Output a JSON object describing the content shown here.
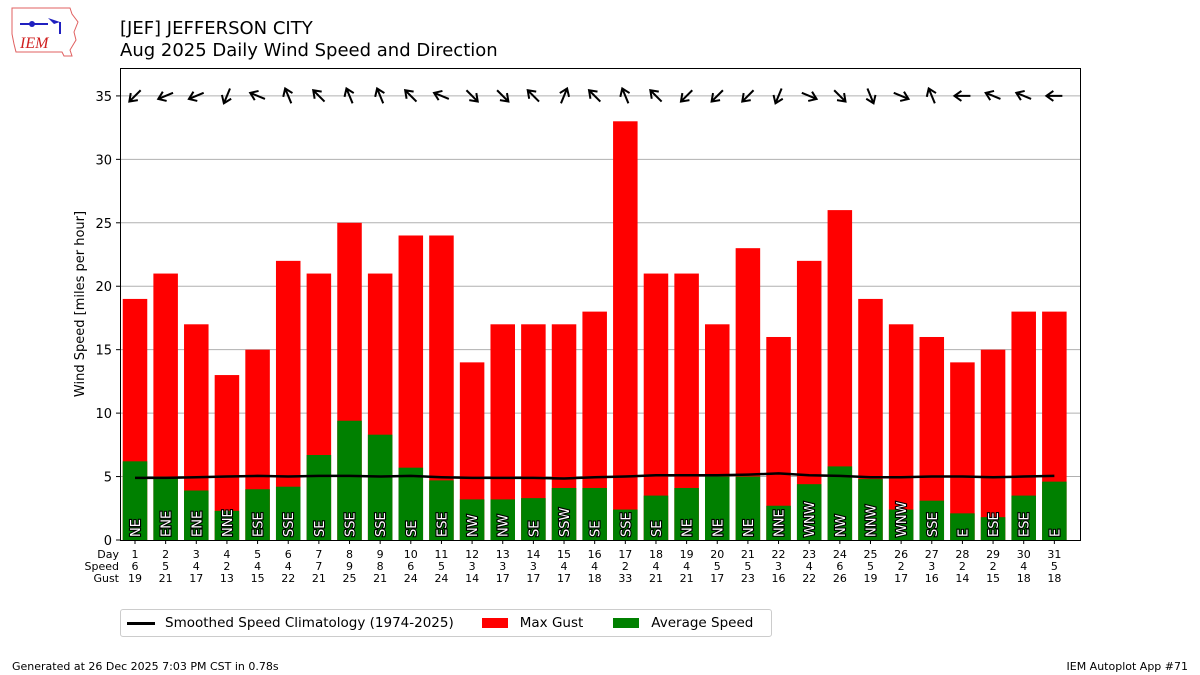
{
  "header": {
    "title_line1": "[JEF] JEFFERSON CITY",
    "title_line2": "Aug 2025 Daily Wind Speed and Direction",
    "logo_text": "IEM"
  },
  "footer": {
    "generated": "Generated at 26 Dec 2025 7:03 PM CST in 0.78s",
    "app": "IEM Autoplot App #71"
  },
  "legend": {
    "items": [
      {
        "label": "Smoothed Speed Climatology (1974-2025)",
        "color": "#000000",
        "kind": "line"
      },
      {
        "label": "Max Gust",
        "color": "#ff0000",
        "kind": "box"
      },
      {
        "label": "Average Speed",
        "color": "#008000",
        "kind": "box"
      }
    ]
  },
  "chart_data": {
    "type": "bar",
    "title": "[JEF] JEFFERSON CITY\nAug 2025 Daily Wind Speed and Direction",
    "xlabel": "",
    "ylabel": "Wind Speed [miles per hour]",
    "ylim": [
      0,
      37.2
    ],
    "yticks": [
      0,
      5,
      10,
      15,
      20,
      25,
      30,
      35
    ],
    "grid": "y",
    "legend_position": "bottom-left",
    "row_labels": [
      "Day",
      "Speed",
      "Gust"
    ],
    "days": [
      1,
      2,
      3,
      4,
      5,
      6,
      7,
      8,
      9,
      10,
      11,
      12,
      13,
      14,
      15,
      16,
      17,
      18,
      19,
      20,
      21,
      22,
      23,
      24,
      25,
      26,
      27,
      28,
      29,
      30,
      31
    ],
    "speed_labels": [
      6,
      5,
      4,
      2,
      4,
      4,
      7,
      9,
      8,
      6,
      5,
      3,
      3,
      3,
      4,
      4,
      2,
      4,
      4,
      5,
      5,
      3,
      4,
      6,
      5,
      2,
      3,
      2,
      2,
      4,
      5
    ],
    "gust_labels": [
      19,
      21,
      17,
      13,
      15,
      22,
      21,
      25,
      21,
      24,
      24,
      14,
      17,
      17,
      17,
      18,
      33,
      21,
      21,
      17,
      23,
      16,
      22,
      26,
      19,
      17,
      16,
      14,
      15,
      18,
      18
    ],
    "series": [
      {
        "name": "Max Gust",
        "color": "#ff0000",
        "values": [
          19,
          21,
          17,
          13,
          15,
          22,
          21,
          25,
          21,
          24,
          24,
          14,
          17,
          17,
          17,
          18,
          33,
          21,
          21,
          17,
          23,
          16,
          22,
          26,
          19,
          17,
          16,
          14,
          15,
          18,
          18
        ]
      },
      {
        "name": "Average Speed",
        "color": "#008000",
        "values": [
          6.2,
          5.0,
          3.9,
          2.3,
          4.0,
          4.2,
          6.7,
          9.4,
          8.3,
          5.7,
          4.7,
          3.2,
          3.2,
          3.3,
          4.1,
          4.1,
          2.4,
          3.5,
          4.1,
          5.0,
          5.0,
          2.7,
          4.4,
          5.8,
          4.8,
          2.4,
          3.1,
          2.1,
          1.8,
          3.5,
          4.6
        ]
      },
      {
        "name": "Smoothed Speed Climatology (1974-2025)",
        "color": "#000000",
        "kind": "line",
        "values": [
          4.9,
          4.9,
          4.95,
          5.0,
          5.05,
          5.0,
          5.05,
          5.05,
          5.0,
          5.05,
          4.95,
          4.9,
          4.9,
          4.9,
          4.85,
          4.95,
          5.0,
          5.1,
          5.1,
          5.1,
          5.15,
          5.25,
          5.1,
          5.05,
          4.95,
          4.95,
          5.0,
          5.0,
          4.95,
          5.0,
          5.05
        ]
      }
    ],
    "directions": [
      "NE",
      "ENE",
      "ENE",
      "NNE",
      "ESE",
      "SSE",
      "SE",
      "SSE",
      "SSE",
      "SE",
      "ESE",
      "NW",
      "NW",
      "SE",
      "SSW",
      "SE",
      "SSE",
      "SE",
      "NE",
      "NE",
      "NE",
      "NNE",
      "WNW",
      "NW",
      "NNW",
      "WNW",
      "SSE",
      "E",
      "ESE",
      "ESE",
      "E"
    ],
    "arrow_direction_deg": 35
  }
}
